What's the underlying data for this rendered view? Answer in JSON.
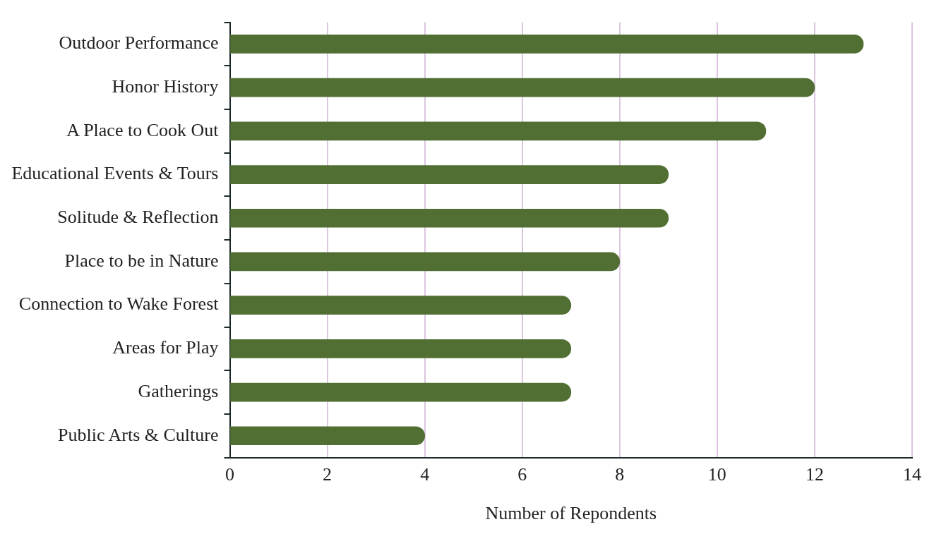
{
  "chart_data": {
    "type": "bar",
    "orientation": "horizontal",
    "xlabel": "Number of Repondents",
    "categories": [
      "Outdoor Performance",
      "Honor History",
      "A Place to Cook Out",
      "Educational Events & Tours",
      "Solitude & Reflection",
      "Place to be in Nature",
      "Connection to Wake Forest",
      "Areas for Play",
      "Gatherings",
      "Public Arts & Culture"
    ],
    "values": [
      13,
      12,
      11,
      9,
      9,
      8,
      7,
      7,
      7,
      4
    ],
    "color": "#516f33",
    "xlim": [
      0,
      14
    ],
    "xticks": [
      0,
      2,
      4,
      6,
      8,
      10,
      12,
      14
    ],
    "grid": "x",
    "legend": false
  }
}
